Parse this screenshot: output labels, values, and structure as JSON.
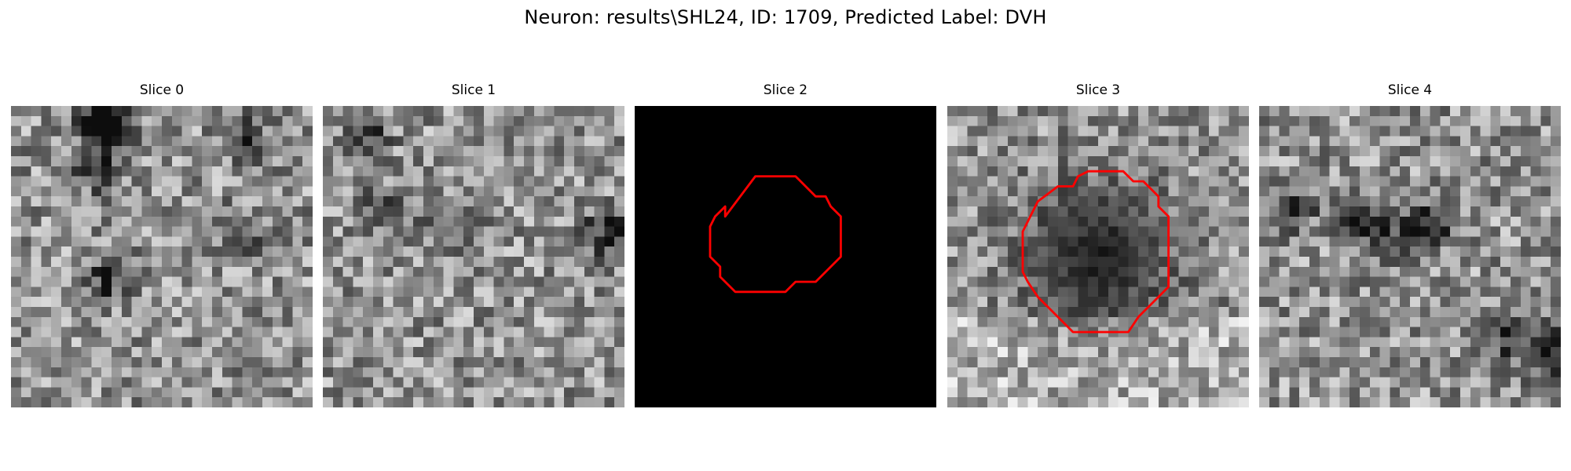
{
  "figure": {
    "title": "Neuron: results\\SHL24, ID: 1709, Predicted Label: DVH",
    "contour_color": "#ff0000",
    "colormap": "gray"
  },
  "panels": [
    {
      "title": "Slice 0",
      "kind": "noise",
      "seed": 11,
      "dark_spots": [
        [
          9,
          1,
          0.55
        ],
        [
          9,
          2,
          0.45
        ],
        [
          8,
          6,
          0.3
        ],
        [
          23,
          3,
          0.35
        ],
        [
          9,
          17,
          0.35
        ],
        [
          22,
          12,
          0.3
        ]
      ]
    },
    {
      "title": "Slice 1",
      "kind": "noise",
      "seed": 27,
      "dark_spots": [
        [
          13,
          11,
          0.35
        ],
        [
          28,
          12,
          0.45
        ],
        [
          4,
          2,
          0.3
        ],
        [
          6,
          10,
          0.3
        ]
      ]
    },
    {
      "title": "Slice 2",
      "kind": "black",
      "contour": true
    },
    {
      "title": "Slice 3",
      "kind": "blob",
      "seed": 43,
      "contour": true
    },
    {
      "title": "Slice 4",
      "kind": "noise",
      "seed": 59,
      "dark_spots": [
        [
          10,
          11,
          0.4
        ],
        [
          14,
          13,
          0.4
        ],
        [
          17,
          11,
          0.35
        ],
        [
          24,
          22,
          0.45
        ],
        [
          28,
          24,
          0.5
        ],
        [
          3,
          10,
          0.3
        ]
      ]
    }
  ]
}
